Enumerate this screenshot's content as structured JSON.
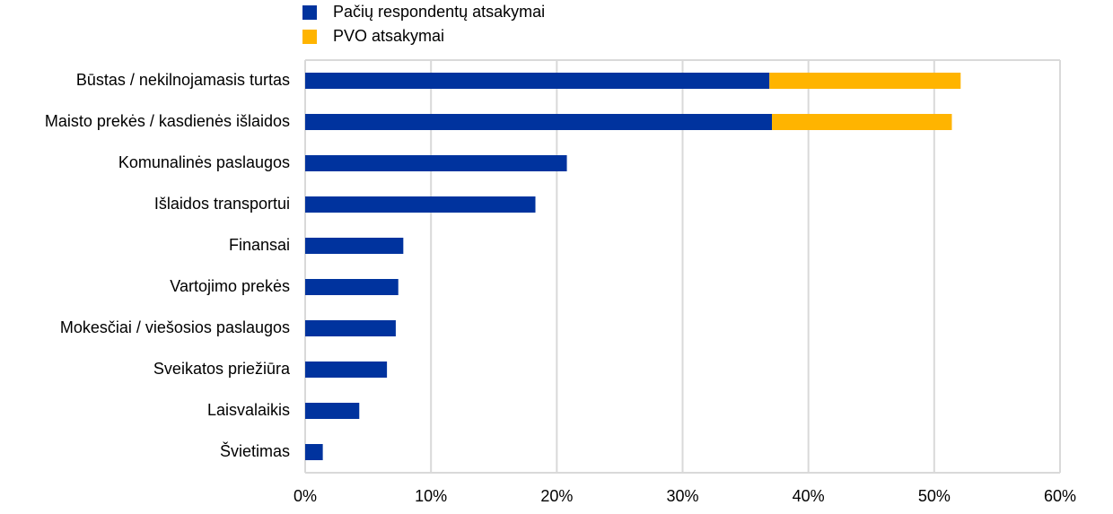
{
  "chart_data": {
    "type": "hbar-stacked",
    "categories": [
      "Būstas / nekilnojamasis turtas",
      "Maisto prekės / kasdienės išlaidos",
      "Komunalinės paslaugos",
      "Išlaidos transportui",
      "Finansai",
      "Vartojimo prekės",
      "Mokesčiai / viešosios paslaugos",
      "Sveikatos priežiūra",
      "Laisvalaikis",
      "Švietimas"
    ],
    "series": [
      {
        "name": "Pačių respondentų atsakymai",
        "color": "#00339e",
        "values": [
          36.9,
          37.1,
          20.8,
          18.3,
          7.8,
          7.4,
          7.2,
          6.5,
          4.3,
          1.4
        ]
      },
      {
        "name": "PVO atsakymai",
        "color": "#ffb400",
        "values": [
          15.2,
          14.3,
          null,
          null,
          null,
          null,
          null,
          null,
          null,
          null
        ]
      }
    ],
    "xlim": [
      0,
      60
    ],
    "xticks": [
      {
        "value": 0,
        "label": "0%"
      },
      {
        "value": 10,
        "label": "10%"
      },
      {
        "value": 20,
        "label": "20%"
      },
      {
        "value": 30,
        "label": "30%"
      },
      {
        "value": 40,
        "label": "40%"
      },
      {
        "value": 50,
        "label": "50%"
      },
      {
        "value": 60,
        "label": "60%"
      }
    ],
    "grid": true,
    "legend": "top"
  }
}
